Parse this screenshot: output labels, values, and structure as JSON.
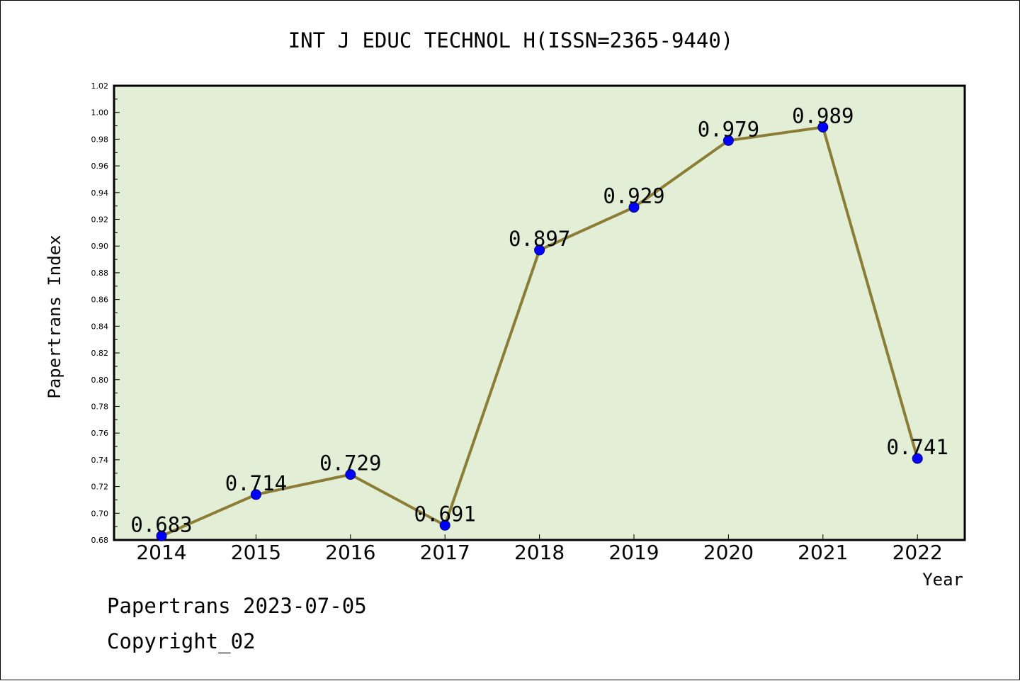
{
  "chart_data": {
    "type": "line",
    "title": "INT J EDUC TECHNOL H(ISSN=2365-9440)",
    "xlabel": "Year",
    "ylabel": "Papertrans Index",
    "categories": [
      "2014",
      "2015",
      "2016",
      "2017",
      "2018",
      "2019",
      "2020",
      "2021",
      "2022"
    ],
    "values": [
      0.683,
      0.714,
      0.729,
      0.691,
      0.897,
      0.929,
      0.979,
      0.989,
      0.741
    ],
    "data_labels": [
      "0.683",
      "0.714",
      "0.729",
      "0.691",
      "0.897",
      "0.929",
      "0.979",
      "0.989",
      "0.741"
    ],
    "ylim": [
      0.68,
      1.02
    ],
    "y_ticks": [
      "0.68",
      "0.70",
      "0.72",
      "0.74",
      "0.76",
      "0.78",
      "0.80",
      "0.82",
      "0.84",
      "0.86",
      "0.88",
      "0.90",
      "0.92",
      "0.94",
      "0.96",
      "0.98",
      "1.00",
      "1.02"
    ],
    "grid": false,
    "legend": "none",
    "colors": {
      "plot_background": "#e2efd6",
      "line": "#8b7d35",
      "marker": "#0000ff",
      "axis": "#000000"
    }
  },
  "footer": {
    "line1": "Papertrans 2023-07-05",
    "line2": "Copyright_02"
  }
}
